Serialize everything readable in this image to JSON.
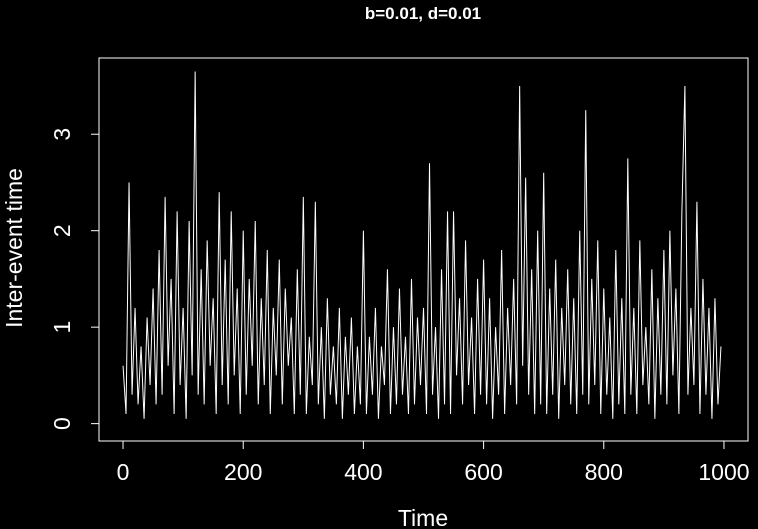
{
  "chart_data": {
    "type": "line",
    "title": "b=0.01, d=0.01",
    "x_label": "Time",
    "y_label": "Inter-event time",
    "x": [
      0,
      5,
      10,
      15,
      20,
      25,
      30,
      35,
      40,
      45,
      50,
      55,
      60,
      65,
      70,
      75,
      80,
      85,
      90,
      95,
      100,
      105,
      110,
      115,
      120,
      125,
      130,
      135,
      140,
      145,
      150,
      155,
      160,
      165,
      170,
      175,
      180,
      185,
      190,
      195,
      200,
      205,
      210,
      215,
      220,
      225,
      230,
      235,
      240,
      245,
      250,
      255,
      260,
      265,
      270,
      275,
      280,
      285,
      290,
      295,
      300,
      305,
      310,
      315,
      320,
      325,
      330,
      335,
      340,
      345,
      350,
      355,
      360,
      365,
      370,
      375,
      380,
      385,
      390,
      395,
      400,
      405,
      410,
      415,
      420,
      425,
      430,
      435,
      440,
      445,
      450,
      455,
      460,
      465,
      470,
      475,
      480,
      485,
      490,
      495,
      500,
      505,
      510,
      515,
      520,
      525,
      530,
      535,
      540,
      545,
      550,
      555,
      560,
      565,
      570,
      575,
      580,
      585,
      590,
      595,
      600,
      605,
      610,
      615,
      620,
      625,
      630,
      635,
      640,
      645,
      650,
      655,
      660,
      665,
      670,
      675,
      680,
      685,
      690,
      695,
      700,
      705,
      710,
      715,
      720,
      725,
      730,
      735,
      740,
      745,
      750,
      755,
      760,
      765,
      770,
      775,
      780,
      785,
      790,
      795,
      800,
      805,
      810,
      815,
      820,
      825,
      830,
      835,
      840,
      845,
      850,
      855,
      860,
      865,
      870,
      875,
      880,
      885,
      890,
      895,
      900,
      905,
      910,
      915,
      920,
      925,
      930,
      935,
      940,
      945,
      950,
      955,
      960,
      965,
      970,
      975,
      980,
      985,
      990,
      995
    ],
    "series": [
      {
        "name": "Inter-event time",
        "color": "#ffffff",
        "values": [
          0.6,
          0.1,
          2.5,
          0.3,
          1.2,
          0.2,
          0.8,
          0.05,
          1.1,
          0.4,
          1.4,
          0.2,
          1.8,
          0.3,
          2.35,
          0.6,
          1.5,
          0.1,
          2.2,
          0.4,
          1.2,
          0.05,
          2.1,
          0.5,
          3.65,
          0.3,
          1.6,
          0.2,
          1.9,
          0.6,
          1.3,
          0.1,
          2.4,
          0.4,
          1.7,
          0.2,
          2.2,
          0.5,
          1.4,
          0.1,
          2.0,
          0.3,
          1.5,
          0.6,
          2.1,
          0.2,
          1.3,
          0.4,
          1.8,
          0.1,
          1.2,
          0.5,
          1.7,
          0.2,
          1.4,
          0.6,
          1.1,
          0.1,
          1.6,
          0.3,
          2.35,
          0.1,
          0.9,
          0.4,
          2.3,
          0.2,
          1.0,
          0.05,
          1.3,
          0.3,
          0.8,
          0.2,
          1.2,
          0.05,
          0.9,
          0.3,
          1.1,
          0.1,
          0.8,
          0.2,
          2.0,
          0.1,
          0.9,
          0.3,
          1.2,
          0.05,
          0.8,
          0.4,
          1.6,
          0.1,
          1.0,
          0.2,
          1.4,
          0.3,
          0.9,
          0.1,
          1.5,
          0.2,
          1.1,
          0.4,
          1.2,
          0.1,
          2.7,
          0.3,
          1.0,
          0.05,
          1.6,
          0.2,
          2.2,
          0.1,
          2.2,
          0.5,
          1.3,
          0.2,
          1.9,
          0.4,
          1.1,
          0.1,
          1.5,
          0.3,
          1.7,
          0.2,
          1.3,
          0.05,
          1.0,
          0.3,
          1.8,
          0.1,
          1.2,
          0.4,
          1.5,
          0.2,
          3.5,
          0.6,
          2.55,
          0.3,
          1.6,
          0.1,
          2.0,
          0.2,
          2.6,
          0.1,
          1.4,
          0.3,
          1.7,
          0.05,
          1.2,
          0.4,
          1.6,
          0.2,
          1.3,
          0.1,
          2.0,
          0.3,
          3.25,
          0.2,
          1.5,
          0.4,
          1.9,
          0.1,
          1.4,
          0.3,
          1.1,
          0.05,
          1.8,
          0.2,
          1.3,
          0.1,
          2.75,
          0.3,
          1.2,
          0.1,
          1.9,
          0.4,
          1.0,
          0.2,
          1.6,
          0.05,
          1.3,
          0.3,
          1.8,
          0.2,
          2.0,
          0.5,
          1.4,
          0.1,
          2.2,
          3.5,
          0.3,
          1.2,
          0.4,
          2.3,
          0.1,
          1.5,
          0.3,
          1.2,
          0.05,
          1.3,
          0.2,
          0.8
        ]
      }
    ],
    "xlim": [
      -40,
      1040
    ],
    "ylim": [
      -0.18,
      3.79
    ],
    "xticks": [
      0,
      200,
      400,
      600,
      800,
      1000
    ],
    "yticks": [
      0,
      1,
      2,
      3
    ]
  }
}
